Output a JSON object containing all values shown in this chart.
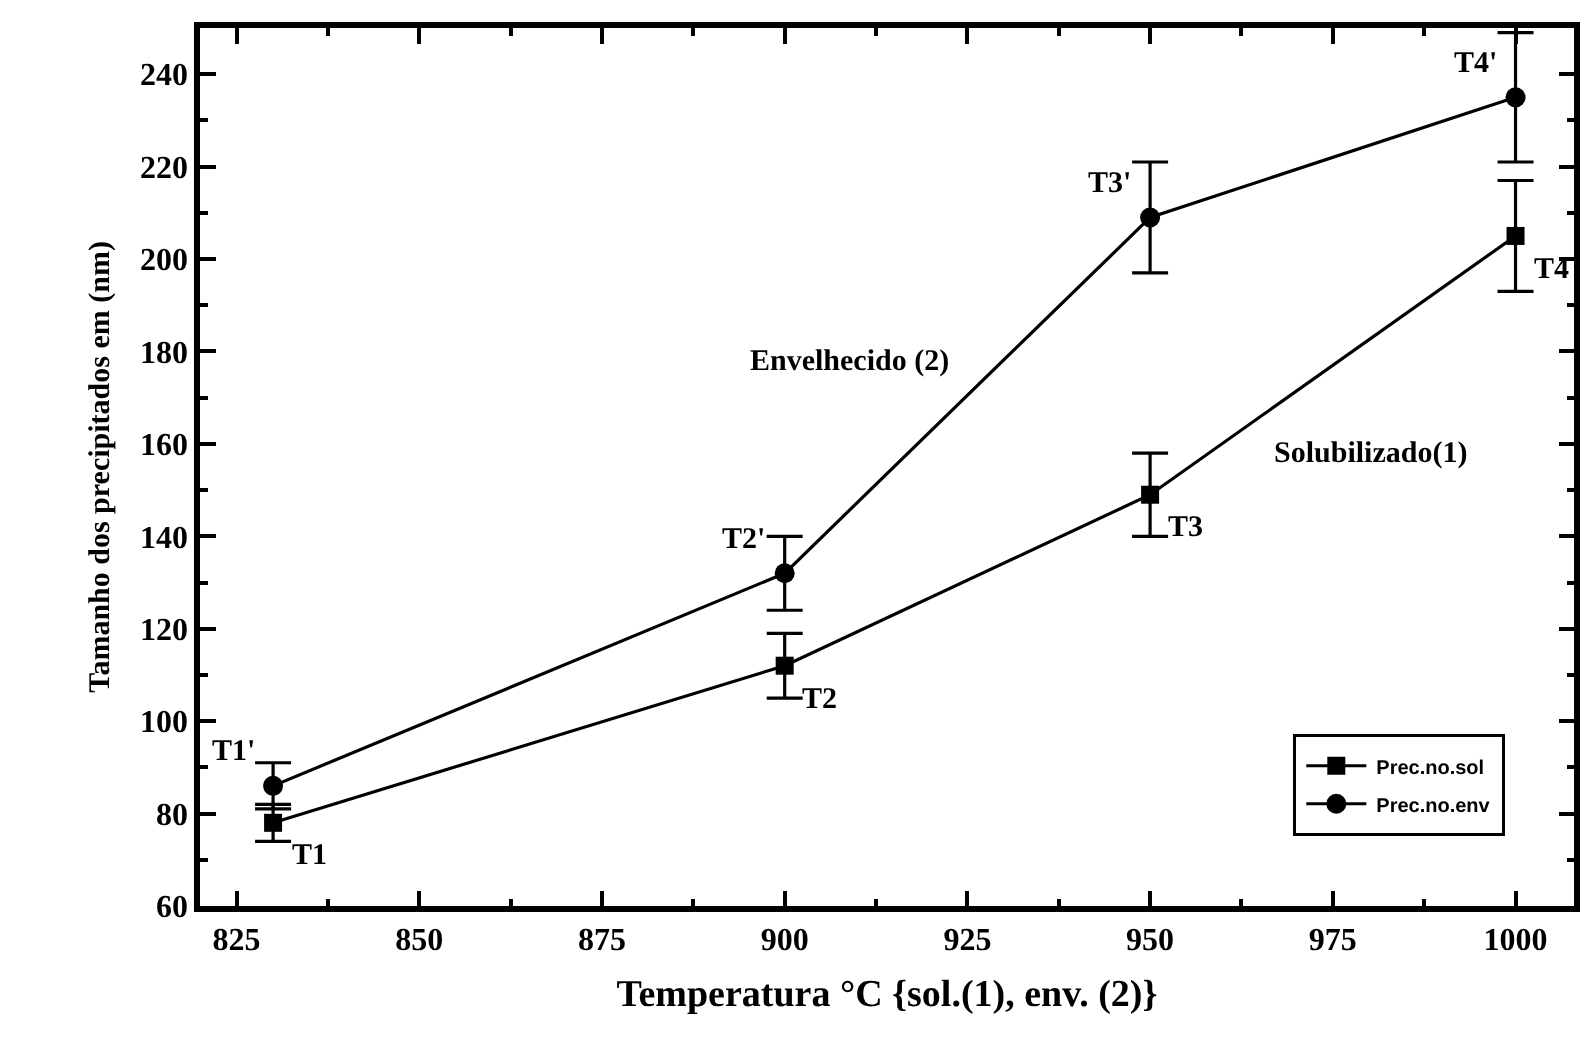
{
  "chart_data": {
    "type": "line",
    "xlabel": "Temperatura °C {sol.(1), env. (2)}",
    "ylabel": "Tamanho dos precipitados em (nm)",
    "x": [
      830,
      900,
      950,
      1000
    ],
    "xlim": [
      820,
      1008
    ],
    "ylim": [
      60,
      250
    ],
    "xticks": [
      825,
      {
        "value": 837.5,
        "label": null
      },
      850,
      {
        "value": 862.5,
        "label": null
      },
      875,
      {
        "value": 887.5,
        "label": null
      },
      900,
      {
        "value": 912.5,
        "label": null
      },
      925,
      {
        "value": 937.5,
        "label": null
      },
      950,
      {
        "value": 962.5,
        "label": null
      },
      975,
      {
        "value": 987.5,
        "label": null
      },
      1000
    ],
    "yticks": [
      60,
      {
        "value": 70,
        "label": null
      },
      80,
      {
        "value": 90,
        "label": null
      },
      100,
      {
        "value": 110,
        "label": null
      },
      120,
      {
        "value": 130,
        "label": null
      },
      140,
      {
        "value": 150,
        "label": null
      },
      160,
      {
        "value": 170,
        "label": null
      },
      180,
      {
        "value": 190,
        "label": null
      },
      200,
      {
        "value": 210,
        "label": null
      },
      220,
      {
        "value": 230,
        "label": null
      },
      240
    ],
    "series": [
      {
        "name": "Prec.no.sol",
        "color": "#000000",
        "marker": "square",
        "values": [
          78,
          112,
          149,
          205
        ],
        "errors": [
          4,
          7,
          9,
          12
        ]
      },
      {
        "name": "Prec.no.env",
        "color": "#000000",
        "marker": "circle",
        "values": [
          86,
          132,
          209,
          235
        ],
        "errors": [
          5,
          8,
          12,
          14
        ]
      }
    ],
    "legend": "bottom right",
    "annotations": [
      {
        "text": "T1'",
        "x": 830,
        "y": 86
      },
      {
        "text": "T1",
        "x": 830,
        "y": 78
      },
      {
        "text": "T2'",
        "x": 900,
        "y": 132
      },
      {
        "text": "T2",
        "x": 900,
        "y": 112
      },
      {
        "text": "T3'",
        "x": 950,
        "y": 209
      },
      {
        "text": "T3",
        "x": 950,
        "y": 149
      },
      {
        "text": "T4'",
        "x": 1000,
        "y": 235
      },
      {
        "text": "T4",
        "x": 1000,
        "y": 205
      },
      {
        "text": "Envelhecido (2)",
        "x": 925,
        "y": 170.5
      },
      {
        "text": "Solubilizado(1)",
        "x": 964.5,
        "y": 165.24
      }
    ]
  }
}
